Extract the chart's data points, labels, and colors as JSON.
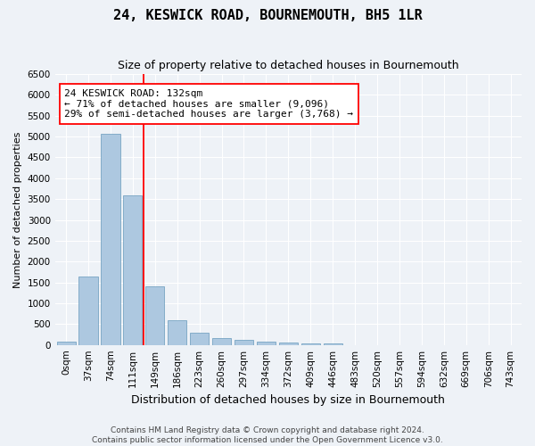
{
  "title": "24, KESWICK ROAD, BOURNEMOUTH, BH5 1LR",
  "subtitle": "Size of property relative to detached houses in Bournemouth",
  "xlabel": "Distribution of detached houses by size in Bournemouth",
  "ylabel": "Number of detached properties",
  "bar_color": "#adc8e0",
  "bar_edge_color": "#6699bb",
  "background_color": "#eef2f7",
  "grid_color": "#ffffff",
  "bin_labels": [
    "0sqm",
    "37sqm",
    "74sqm",
    "111sqm",
    "149sqm",
    "186sqm",
    "223sqm",
    "260sqm",
    "297sqm",
    "334sqm",
    "372sqm",
    "409sqm",
    "446sqm",
    "483sqm",
    "520sqm",
    "557sqm",
    "594sqm",
    "632sqm",
    "669sqm",
    "706sqm",
    "743sqm"
  ],
  "bar_heights": [
    75,
    1650,
    5060,
    3600,
    1400,
    600,
    300,
    160,
    120,
    70,
    55,
    45,
    45,
    0,
    0,
    0,
    0,
    0,
    0,
    0,
    0
  ],
  "red_line_x": 3.5,
  "annotation_text": "24 KESWICK ROAD: 132sqm\n← 71% of detached houses are smaller (9,096)\n29% of semi-detached houses are larger (3,768) →",
  "ylim": [
    0,
    6500
  ],
  "yticks": [
    0,
    500,
    1000,
    1500,
    2000,
    2500,
    3000,
    3500,
    4000,
    4500,
    5000,
    5500,
    6000,
    6500
  ],
  "footer_line1": "Contains HM Land Registry data © Crown copyright and database right 2024.",
  "footer_line2": "Contains public sector information licensed under the Open Government Licence v3.0.",
  "title_fontsize": 11,
  "subtitle_fontsize": 9,
  "annotation_fontsize": 8,
  "ylabel_fontsize": 8,
  "xlabel_fontsize": 9,
  "tick_fontsize": 7.5,
  "footer_fontsize": 6.5
}
